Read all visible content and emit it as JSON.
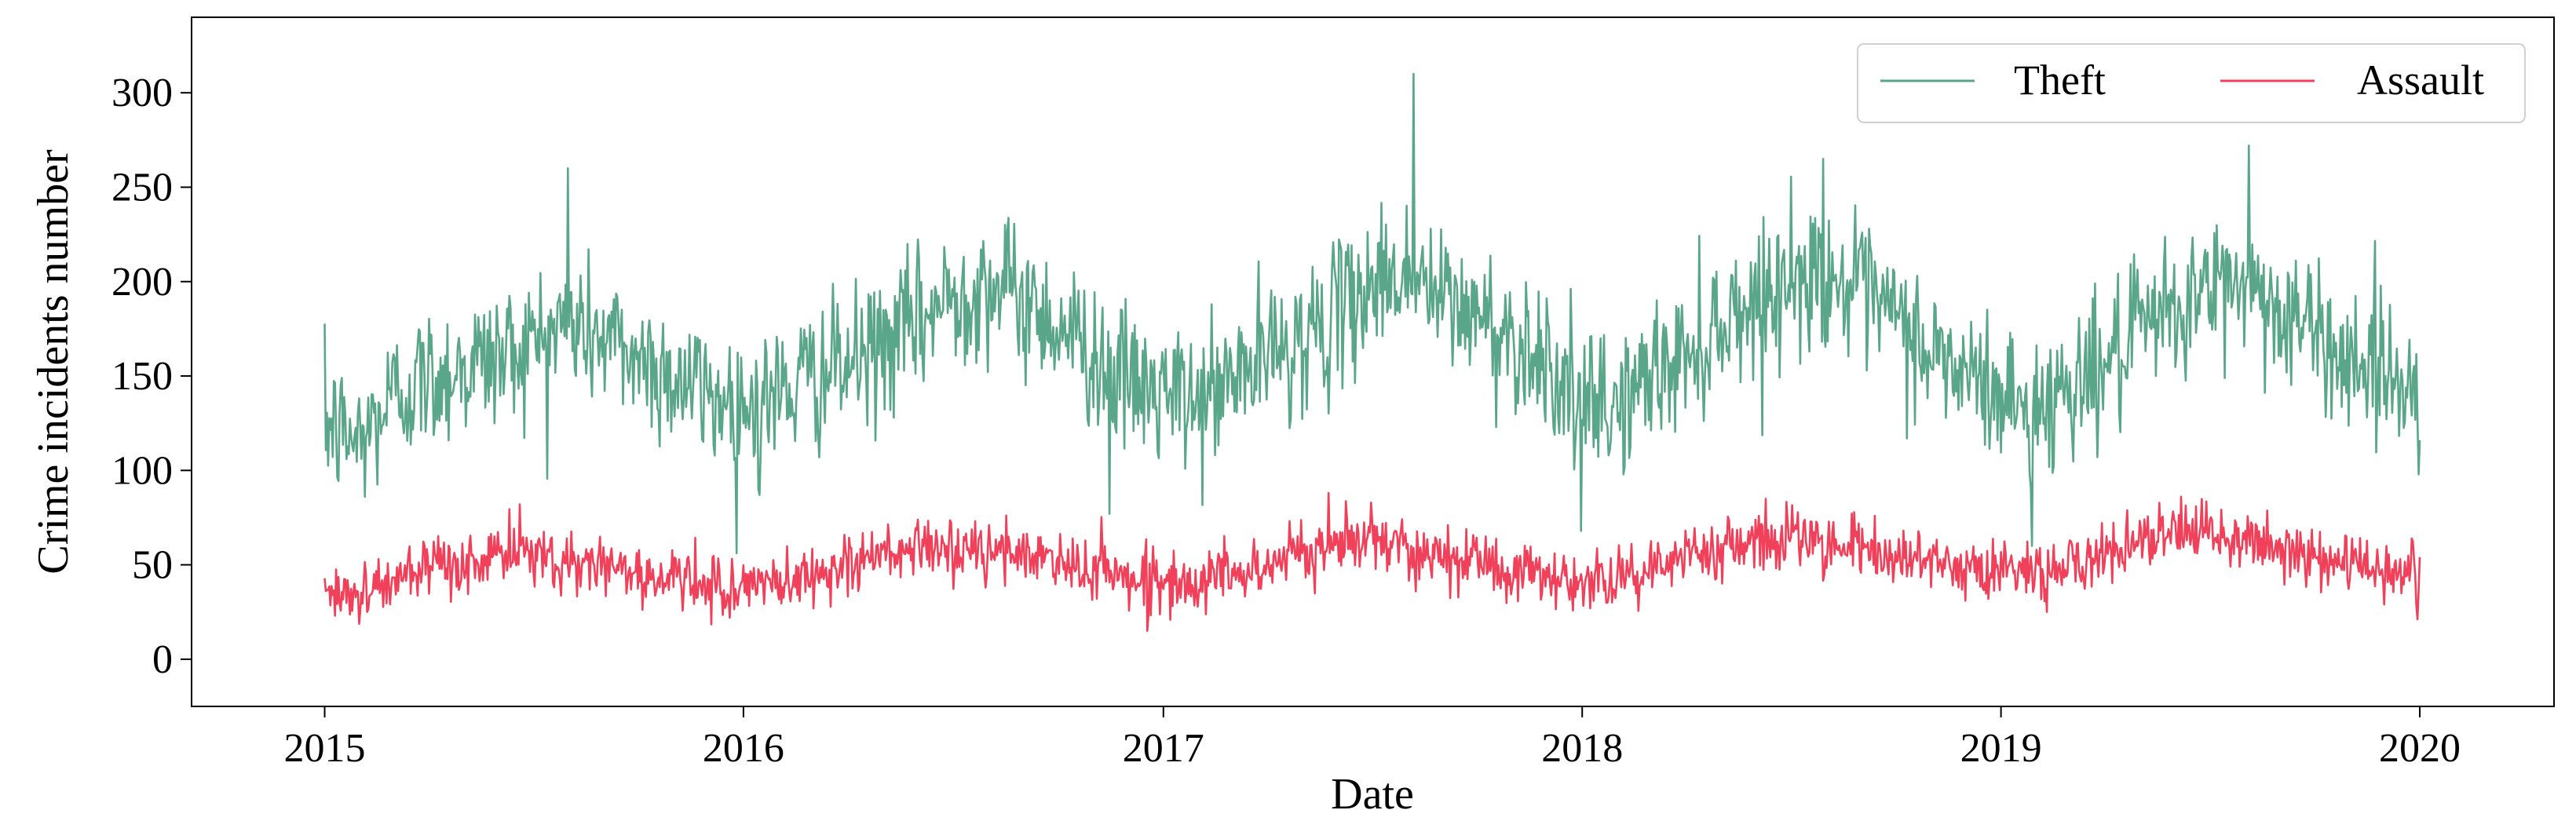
{
  "chart_data": {
    "type": "line",
    "title": "",
    "xlabel": "Date",
    "ylabel": "Crime incidents number",
    "x_axis": {
      "type": "date",
      "start": "2015-01-01",
      "end": "2020-01-01",
      "ticks": [
        "2015",
        "2016",
        "2017",
        "2018",
        "2019",
        "2020"
      ]
    },
    "ylim": [
      -25,
      340
    ],
    "yticks": [
      0,
      50,
      100,
      150,
      200,
      250,
      300
    ],
    "xlim": [
      "2014-09-07",
      "2020-04-27"
    ],
    "grid": false,
    "legend": {
      "placement": "top-right",
      "columns": 2
    },
    "frequency": "daily",
    "series": [
      {
        "name": "Theft",
        "color": "#5aa68a",
        "monthly_mean": [
          [
            125,
            115,
            140,
            148,
            155,
            160,
            168,
            178,
            170,
            160,
            150,
            140
          ],
          [
            135,
            140,
            150,
            155,
            165,
            178,
            192,
            200,
            190,
            178,
            162,
            145
          ],
          [
            140,
            135,
            148,
            160,
            170,
            180,
            200,
            205,
            190,
            182,
            170,
            160
          ],
          [
            130,
            135,
            150,
            160,
            178,
            190,
            200,
            205,
            192,
            180,
            162,
            150
          ],
          [
            140,
            130,
            148,
            155,
            170,
            185,
            195,
            200,
            185,
            172,
            160,
            155
          ]
        ],
        "spikes": [
          {
            "date": "2015-08-01",
            "value": 260
          },
          {
            "date": "2017-08-07",
            "value": 310
          },
          {
            "date": "2017-12-31",
            "value": 68
          },
          {
            "date": "2018-07-30",
            "value": 265
          },
          {
            "date": "2019-01-28",
            "value": 60
          },
          {
            "date": "2019-08-05",
            "value": 272
          },
          {
            "date": "2016-01-15",
            "value": 87
          },
          {
            "date": "2016-11-15",
            "value": 77
          }
        ]
      },
      {
        "name": "Assault",
        "color": "#f0405a",
        "monthly_mean": [
          [
            38,
            35,
            42,
            45,
            50,
            55,
            55,
            52,
            50,
            46,
            42,
            38
          ],
          [
            38,
            40,
            45,
            50,
            55,
            58,
            58,
            56,
            55,
            52,
            48,
            44
          ],
          [
            40,
            42,
            45,
            50,
            55,
            62,
            64,
            60,
            56,
            52,
            48,
            44
          ],
          [
            40,
            42,
            48,
            55,
            60,
            65,
            65,
            62,
            58,
            55,
            50,
            47
          ],
          [
            48,
            46,
            50,
            55,
            60,
            67,
            66,
            62,
            58,
            55,
            52,
            48
          ]
        ],
        "spikes": [
          {
            "date": "2015-06-20",
            "value": 82
          },
          {
            "date": "2017-05-25",
            "value": 88
          },
          {
            "date": "2018-06-10",
            "value": 85
          },
          {
            "date": "2015-01-10",
            "value": 23
          },
          {
            "date": "2019-02-10",
            "value": 25
          }
        ]
      }
    ]
  }
}
